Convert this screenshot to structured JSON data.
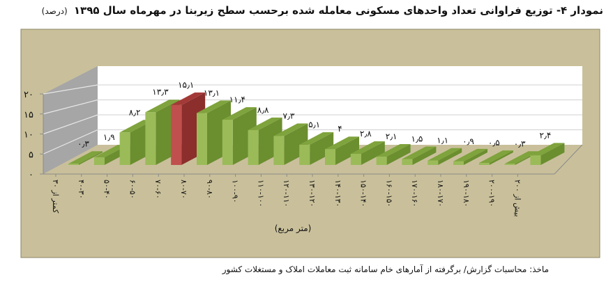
{
  "chart_data": {
    "type": "bar",
    "title": "نمودار ۴- توزیع فراوانی تعداد واحدهای مسکونی معامله شده برحسب سطح زیربنا در مهرماه سال ۱۳۹۵",
    "title_unit": "(درصد)",
    "xlabel": "(متر مربع)",
    "ylabel": "",
    "ylim": [
      0,
      20
    ],
    "yticks": [
      "۰",
      "۵",
      "۱۰",
      "۱۵",
      "۲۰"
    ],
    "categories": [
      "کمتر از ۳۰",
      "۴۰-۳۰",
      "۵۰-۴۰",
      "۶۰-۵۰",
      "۷۰-۶۰",
      "۸۰-۷۰",
      "۹۰-۸۰",
      "۱۰۰-۹۰",
      "۱۱۰-۱۰۰",
      "۱۲۰-۱۱۰",
      "۱۳۰-۱۲۰",
      "۱۴۰-۱۳۰",
      "۱۵۰-۱۴۰",
      "۱۶۰-۱۵۰",
      "۱۷۰-۱۶۰",
      "۱۸۰-۱۷۰",
      "۱۹۰-۱۸۰",
      "۲۰۰-۱۹۰",
      "بیش از ۲۰۰"
    ],
    "values": [
      0.3,
      1.9,
      8.2,
      13.3,
      15.1,
      13.1,
      11.4,
      8.8,
      7.3,
      5.1,
      4,
      2.8,
      2.1,
      1.5,
      1.1,
      0.9,
      0.5,
      0.3,
      2.4
    ],
    "data_labels": [
      "۰٫۳",
      "۱٫۹",
      "۸٫۲",
      "۱۳٫۳",
      "۱۵٫۱",
      "۱۳٫۱",
      "۱۱٫۴",
      "۸٫۸",
      "۷٫۳",
      "۵٫۱",
      "۴",
      "۲٫۸",
      "۲٫۱",
      "۱٫۵",
      "۱٫۱",
      "۰٫۹",
      "۰٫۵",
      "۰٫۳",
      "۲٫۴"
    ],
    "highlight_index": 4,
    "grid": true,
    "legend": "none",
    "colors": {
      "bar_front": "#9bbb59",
      "bar_side": "#6b8e2f",
      "bar_top": "#7fa33d",
      "highlight_front": "#c0504d",
      "highlight_side": "#8b2e2c",
      "highlight_top": "#a33a37",
      "background": "#c9c09b",
      "back_wall": "#ffffff",
      "side_wall": "#a6a6a6"
    }
  },
  "source": "ماخذ: محاسبات گزارش/ برگرفته از آمارهای خام سامانه ثبت معاملات املاک و مستغلات کشور"
}
